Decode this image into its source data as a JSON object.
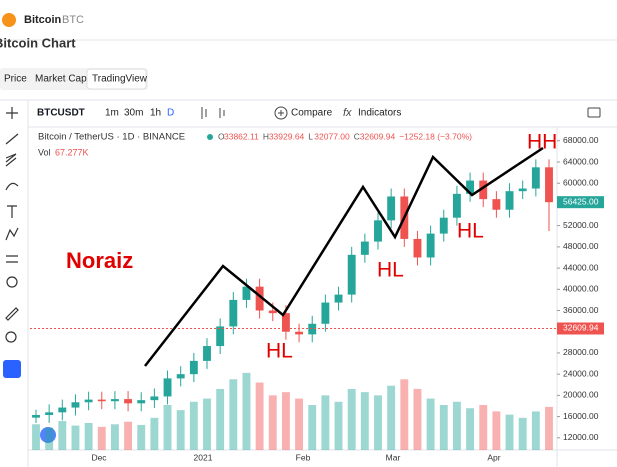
{
  "header": {
    "coin": "Bitcoin",
    "symbol": "BTC",
    "page_title": "Bitcoin Chart"
  },
  "tabs": [
    "Price",
    "Market Cap",
    "TradingView"
  ],
  "toolbar": {
    "ticker": "BTCUSDT",
    "intervals": [
      "1m",
      "30m",
      "1h",
      "D"
    ],
    "compare": "Compare",
    "indicators": "Indicators"
  },
  "legend": {
    "name": "Bitcoin / TetherUS · 1D · BINANCE",
    "ohlc": [
      [
        "O",
        "33862.11"
      ],
      [
        "H",
        "33929.64"
      ],
      [
        "L",
        "32077.00"
      ],
      [
        "C",
        "32609.94"
      ]
    ],
    "change": "−1252.18 (−3.70%)",
    "volume": "Vol",
    "volume_value": "67.277K"
  },
  "chart_data": {
    "type": "candlestick",
    "candles": [
      [
        15800,
        17300,
        14800,
        16300
      ],
      [
        16300,
        18300,
        14800,
        16800
      ],
      [
        16800,
        19200,
        15300,
        17700
      ],
      [
        17700,
        20200,
        16200,
        18700
      ],
      [
        18700,
        20700,
        17200,
        19200
      ],
      [
        19200,
        20700,
        17400,
        18900
      ],
      [
        18900,
        20800,
        17400,
        19300
      ],
      [
        19300,
        20800,
        17000,
        18500
      ],
      [
        18500,
        20600,
        17000,
        19100
      ],
      [
        19100,
        21300,
        17600,
        19800
      ],
      [
        19800,
        24700,
        18300,
        23200
      ],
      [
        23200,
        25500,
        21700,
        24000
      ],
      [
        24000,
        28000,
        22500,
        26500
      ],
      [
        26500,
        30800,
        25000,
        29300
      ],
      [
        29300,
        34500,
        27800,
        33000
      ],
      [
        33000,
        39500,
        31500,
        38000
      ],
      [
        38000,
        42000,
        36500,
        40500
      ],
      [
        40500,
        42000,
        34500,
        36000
      ],
      [
        36000,
        37500,
        34000,
        35500
      ],
      [
        35500,
        37000,
        30500,
        32000
      ],
      [
        32000,
        33500,
        30000,
        31500
      ],
      [
        31500,
        35000,
        30000,
        33500
      ],
      [
        33500,
        39000,
        32000,
        37500
      ],
      [
        37500,
        40500,
        36000,
        39000
      ],
      [
        39000,
        48000,
        37500,
        46500
      ],
      [
        46500,
        50500,
        45000,
        49000
      ],
      [
        49000,
        54500,
        47500,
        53000
      ],
      [
        53000,
        59000,
        51500,
        57500
      ],
      [
        57500,
        59000,
        48000,
        49500
      ],
      [
        49500,
        51000,
        44500,
        46000
      ],
      [
        46000,
        52000,
        44500,
        50500
      ],
      [
        50500,
        55000,
        49000,
        53500
      ],
      [
        53500,
        59500,
        52000,
        58000
      ],
      [
        58000,
        62000,
        56500,
        60500
      ],
      [
        60500,
        62000,
        55500,
        57000
      ],
      [
        57000,
        58500,
        53500,
        55000
      ],
      [
        55000,
        60000,
        53500,
        58500
      ],
      [
        58500,
        60500,
        57000,
        59000
      ],
      [
        59000,
        64500,
        57500,
        63000
      ],
      [
        63000,
        64500,
        51000,
        56425
      ]
    ],
    "volumes": [
      40,
      35,
      45,
      38,
      42,
      36,
      40,
      44,
      39,
      50,
      70,
      62,
      75,
      80,
      95,
      110,
      120,
      105,
      85,
      90,
      80,
      70,
      85,
      75,
      95,
      90,
      85,
      100,
      110,
      95,
      80,
      70,
      75,
      65,
      70,
      60,
      55,
      50,
      60,
      67
    ],
    "volume_max": 140,
    "ylim": [
      9700,
      70600
    ],
    "yticks": [
      {
        "value": 68000,
        "label": "68000.00"
      },
      {
        "value": 64000,
        "label": "64000.00"
      },
      {
        "value": 60000,
        "label": "60000.00"
      },
      {
        "value": 56000,
        "label": "56000.00"
      },
      {
        "value": 52000,
        "label": "52000.00"
      },
      {
        "value": 48000,
        "label": "48000.00"
      },
      {
        "value": 44000,
        "label": "44000.00"
      },
      {
        "value": 40000,
        "label": "40000.00"
      },
      {
        "value": 36000,
        "label": "36000.00"
      },
      {
        "value": 32000,
        "label": "32000.00"
      },
      {
        "value": 28000,
        "label": "28000.00"
      },
      {
        "value": 24000,
        "label": "24000.00"
      },
      {
        "value": 20000,
        "label": "20000.00"
      },
      {
        "value": 16000,
        "label": "16000.00"
      },
      {
        "value": 12000,
        "label": "12000.00"
      }
    ],
    "time_labels": [
      "Dec",
      "2021",
      "Feb",
      "Mar",
      "Apr"
    ],
    "last_price": {
      "value": 56425,
      "label": "56425.00"
    },
    "current_price": {
      "value": 32609.94,
      "label": "32609.94"
    },
    "up_color": "#26a69a",
    "down_color": "#ef5350"
  },
  "annotations": {
    "author": "Noraiz",
    "labels": [
      "HL",
      "HL",
      "HL",
      "HH"
    ]
  }
}
